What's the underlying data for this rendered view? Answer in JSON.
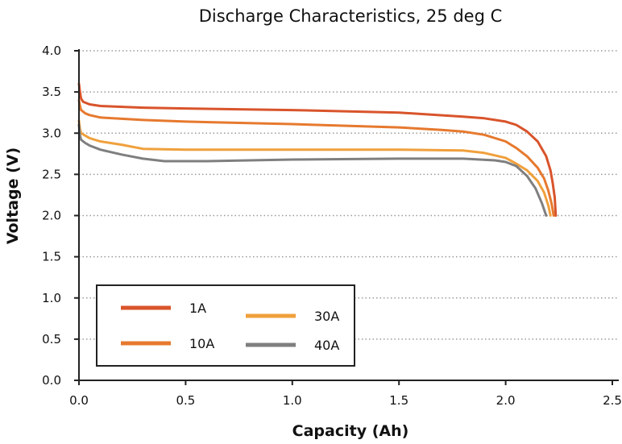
{
  "chart_data": {
    "type": "line",
    "title": "Discharge Characteristics, 25 deg C",
    "xlabel": "Capacity (Ah)",
    "ylabel": "Voltage (V)",
    "xlim": [
      0,
      2.5
    ],
    "ylim": [
      0,
      4.0
    ],
    "xticks": [
      "0.0",
      "0.5",
      "1.0",
      "1.5",
      "2.0",
      "2.5"
    ],
    "yticks": [
      "0.0",
      "0.5",
      "1.0",
      "1.5",
      "2.0",
      "2.5",
      "3.0",
      "3.5",
      "4.0"
    ],
    "grid": "horizontal dotted",
    "legend_position": "bottom-left",
    "series": [
      {
        "name": "1A",
        "color": "#d9542b",
        "x": [
          0.0,
          0.005,
          0.01,
          0.02,
          0.05,
          0.1,
          0.3,
          0.5,
          1.0,
          1.5,
          1.8,
          1.9,
          2.0,
          2.05,
          2.1,
          2.15,
          2.19,
          2.21,
          2.22,
          2.23,
          2.235
        ],
        "y": [
          3.6,
          3.5,
          3.42,
          3.38,
          3.35,
          3.33,
          3.31,
          3.3,
          3.28,
          3.25,
          3.2,
          3.18,
          3.14,
          3.1,
          3.02,
          2.9,
          2.72,
          2.55,
          2.4,
          2.22,
          2.0
        ]
      },
      {
        "name": "10A",
        "color": "#e6792e",
        "x": [
          0.0,
          0.005,
          0.01,
          0.03,
          0.05,
          0.1,
          0.3,
          0.5,
          1.0,
          1.5,
          1.7,
          1.8,
          1.9,
          2.0,
          2.05,
          2.1,
          2.15,
          2.18,
          2.2,
          2.215,
          2.225
        ],
        "y": [
          3.4,
          3.33,
          3.28,
          3.24,
          3.22,
          3.19,
          3.16,
          3.14,
          3.11,
          3.07,
          3.04,
          3.02,
          2.98,
          2.9,
          2.82,
          2.72,
          2.58,
          2.45,
          2.3,
          2.15,
          2.0
        ]
      },
      {
        "name": "30A",
        "color": "#f0a03c",
        "x": [
          0.0,
          0.005,
          0.01,
          0.03,
          0.05,
          0.1,
          0.2,
          0.3,
          0.5,
          1.0,
          1.5,
          1.8,
          1.9,
          2.0,
          2.05,
          2.1,
          2.15,
          2.18,
          2.2,
          2.21
        ],
        "y": [
          3.15,
          3.05,
          3.0,
          2.97,
          2.94,
          2.9,
          2.86,
          2.81,
          2.8,
          2.8,
          2.8,
          2.79,
          2.76,
          2.7,
          2.63,
          2.55,
          2.42,
          2.28,
          2.12,
          2.0
        ]
      },
      {
        "name": "40A",
        "color": "#7f7f7f",
        "x": [
          0.0,
          0.005,
          0.01,
          0.03,
          0.05,
          0.1,
          0.2,
          0.3,
          0.4,
          0.6,
          1.0,
          1.5,
          1.8,
          1.95,
          2.0,
          2.05,
          2.1,
          2.14,
          2.17,
          2.19
        ],
        "y": [
          3.1,
          2.97,
          2.92,
          2.88,
          2.85,
          2.8,
          2.74,
          2.69,
          2.66,
          2.66,
          2.68,
          2.69,
          2.69,
          2.67,
          2.65,
          2.6,
          2.48,
          2.33,
          2.15,
          2.0
        ]
      }
    ],
    "legend": {
      "columns": [
        [
          "1A",
          "10A"
        ],
        [
          "30A",
          "40A"
        ]
      ]
    }
  }
}
